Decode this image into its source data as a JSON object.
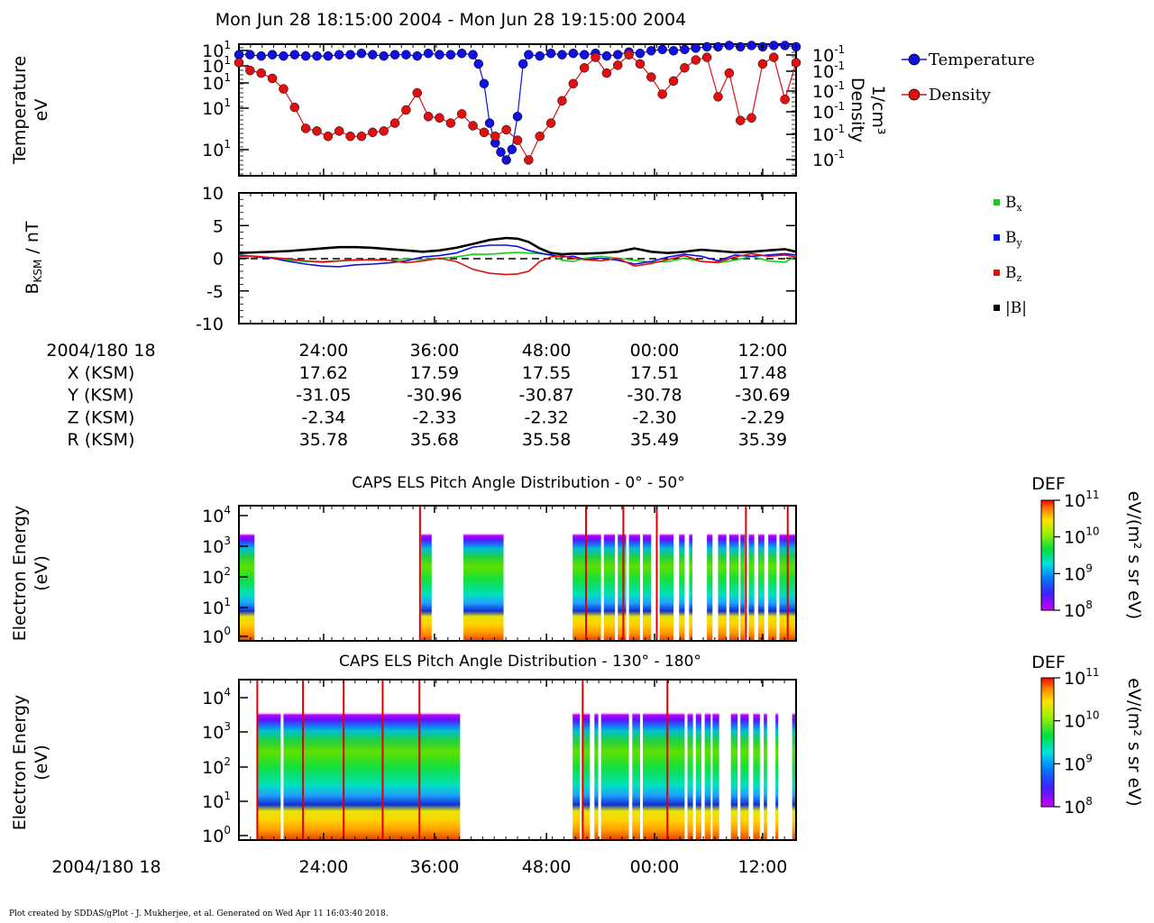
{
  "title": "Mon Jun 28 18:15:00 2004 - Mon Jun 28 19:15:00 2004",
  "footer": "Plot created by SDDAS/gPlot - J. Mukherjee, et al.  Generated on Wed Apr 11 16:03:40 2018.",
  "colors": {
    "temperature": "#1010e0",
    "density": "#e01010",
    "bx": "#10d010",
    "by": "#1010e0",
    "bz": "#e01010",
    "bmag": "#000000"
  },
  "chart_data": [
    {
      "type": "scatter",
      "title": "",
      "xlabel": "",
      "ylabel": "Temperature\neV",
      "ylabel_lines": [
        "Temperature",
        "eV"
      ],
      "y2label_lines": [
        "Density",
        "1/cm³"
      ],
      "legend": [
        {
          "name": "Temperature",
          "color": "#1010e0"
        },
        {
          "name": "Density",
          "color": "#e01010"
        }
      ],
      "legend_placement": "right",
      "y_ticks": [
        "10¹",
        "10¹",
        "10¹",
        "10¹",
        "10¹"
      ],
      "y2_ticks": [
        "10⁻¹",
        "10⁻¹",
        "10⁻¹",
        "10⁻¹",
        "10⁻¹",
        "10⁻¹"
      ],
      "series": [
        {
          "name": "Temperature",
          "x": [
            0,
            2,
            4,
            6,
            8,
            10,
            12,
            14,
            16,
            18,
            20,
            22,
            24,
            26,
            28,
            30,
            32,
            34,
            36,
            38,
            40,
            42,
            43,
            44,
            45,
            46,
            47,
            48,
            49,
            50,
            51,
            52,
            54,
            56,
            58,
            60,
            62,
            64,
            66,
            68,
            70,
            72,
            74,
            76,
            78,
            80,
            82,
            84,
            86,
            88,
            90,
            92,
            94,
            96,
            98,
            100
          ],
          "values": [
            0.92,
            0.92,
            0.91,
            0.92,
            0.91,
            0.92,
            0.91,
            0.91,
            0.91,
            0.92,
            0.92,
            0.93,
            0.92,
            0.91,
            0.92,
            0.92,
            0.91,
            0.93,
            0.92,
            0.92,
            0.93,
            0.92,
            0.85,
            0.7,
            0.4,
            0.25,
            0.18,
            0.12,
            0.2,
            0.45,
            0.85,
            0.92,
            0.91,
            0.93,
            0.92,
            0.93,
            0.92,
            0.93,
            0.91,
            0.92,
            0.94,
            0.93,
            0.95,
            0.96,
            0.95,
            0.96,
            0.97,
            0.98,
            0.98,
            0.99,
            0.98,
            0.99,
            0.98,
            0.99,
            0.99,
            0.98
          ]
        },
        {
          "name": "Density",
          "x": [
            0,
            2,
            4,
            6,
            8,
            10,
            12,
            14,
            16,
            18,
            20,
            22,
            24,
            26,
            28,
            30,
            32,
            34,
            36,
            38,
            40,
            42,
            44,
            46,
            48,
            50,
            52,
            54,
            56,
            58,
            60,
            62,
            64,
            66,
            68,
            70,
            72,
            74,
            76,
            78,
            80,
            82,
            84,
            86,
            88,
            90,
            92,
            94,
            96,
            98,
            100
          ],
          "values": [
            0.86,
            0.8,
            0.78,
            0.74,
            0.66,
            0.52,
            0.36,
            0.34,
            0.3,
            0.34,
            0.3,
            0.3,
            0.33,
            0.34,
            0.4,
            0.5,
            0.63,
            0.45,
            0.44,
            0.4,
            0.47,
            0.38,
            0.33,
            0.3,
            0.35,
            0.27,
            0.12,
            0.3,
            0.4,
            0.57,
            0.7,
            0.82,
            0.9,
            0.78,
            0.84,
            0.92,
            0.85,
            0.75,
            0.62,
            0.72,
            0.82,
            0.88,
            0.9,
            0.6,
            0.78,
            0.42,
            0.44,
            0.85,
            0.9,
            0.58,
            0.86
          ]
        }
      ]
    },
    {
      "type": "line",
      "title": "",
      "xlabel": "",
      "ylabel": "BKSM / nT",
      "ylabel_main": "B",
      "ylabel_sub": "KSM",
      "ylabel_rest": " / nT",
      "ylim": [
        -10,
        10
      ],
      "y_ticks": [
        "10",
        "5",
        "0",
        "-5",
        "-10"
      ],
      "y_tick_values": [
        10,
        5,
        0,
        -5,
        -10
      ],
      "legend": [
        {
          "name": "Bx",
          "base": "B",
          "sub": "x",
          "color": "#10d010"
        },
        {
          "name": "By",
          "base": "B",
          "sub": "y",
          "color": "#1010e0"
        },
        {
          "name": "Bz",
          "base": "B",
          "sub": "z",
          "color": "#e01010"
        },
        {
          "name": "|B|",
          "base": "|B|",
          "sub": "",
          "color": "#000000"
        }
      ],
      "legend_placement": "right",
      "x": [
        0,
        3,
        6,
        9,
        12,
        15,
        18,
        21,
        24,
        27,
        30,
        33,
        36,
        39,
        42,
        45,
        48,
        50,
        52,
        54,
        56,
        58,
        60,
        62,
        65,
        68,
        71,
        74,
        77,
        80,
        83,
        86,
        89,
        92,
        95,
        98,
        100
      ],
      "series": [
        {
          "name": "Bx",
          "values": [
            0.5,
            0.3,
            0,
            -0.3,
            -0.5,
            -0.5,
            -0.4,
            -0.2,
            -0.3,
            -0.3,
            -0.1,
            -0.2,
            0,
            0.2,
            0.6,
            0.6,
            0.8,
            0.9,
            0.8,
            0.7,
            0.5,
            -0.3,
            -0.5,
            0,
            0.3,
            0,
            -0.3,
            -0.6,
            -0.5,
            0,
            -0.5,
            -0.7,
            -0.3,
            0.3,
            -0.4,
            -0.6,
            0.3
          ]
        },
        {
          "name": "By",
          "values": [
            0.5,
            0.2,
            0,
            -0.5,
            -0.9,
            -1.2,
            -1.3,
            -1,
            -0.9,
            -0.7,
            -0.4,
            0.2,
            0.4,
            0.8,
            1.7,
            2.0,
            2.0,
            1.8,
            1.2,
            0.8,
            0.5,
            0.2,
            0.3,
            -0.2,
            0,
            -0.3,
            -0.9,
            -0.5,
            0.2,
            0.6,
            0.3,
            -0.4,
            0.5,
            0.3,
            0.5,
            0.7,
            0.5
          ]
        },
        {
          "name": "Bz",
          "values": [
            0.3,
            0.3,
            0.1,
            -0.1,
            -0.4,
            -0.6,
            -0.4,
            -0.3,
            -0.2,
            -0.3,
            -0.7,
            -0.4,
            0,
            -0.5,
            -1.7,
            -2.3,
            -2.5,
            -2.4,
            -2.0,
            -0.5,
            0.2,
            0.4,
            0,
            -0.2,
            -0.4,
            0,
            -1.2,
            -0.8,
            -0.2,
            0.4,
            -0.5,
            -0.6,
            0.2,
            0.7,
            0.3,
            0.5,
            0.2
          ]
        },
        {
          "name": "|B|",
          "values": [
            0.8,
            0.9,
            1.0,
            1.1,
            1.3,
            1.5,
            1.7,
            1.7,
            1.6,
            1.4,
            1.2,
            1.0,
            1.2,
            1.6,
            2.2,
            2.8,
            3.1,
            3.0,
            2.5,
            1.5,
            0.8,
            0.6,
            0.7,
            0.7,
            0.8,
            1.0,
            1.5,
            1.0,
            0.8,
            1.0,
            1.3,
            1.1,
            0.9,
            1.0,
            1.2,
            1.4,
            1.0
          ]
        }
      ]
    },
    {
      "type": "heatmap",
      "title": "CAPS ELS Pitch Angle Distribution - 0° - 50°",
      "xlabel": "",
      "ylabel_lines": [
        "Electron Energy",
        "(eV)"
      ],
      "y_ticks": [
        {
          "base": "10",
          "exp": "4"
        },
        {
          "base": "10",
          "exp": "3"
        },
        {
          "base": "10",
          "exp": "2"
        },
        {
          "base": "10",
          "exp": "1"
        },
        {
          "base": "10",
          "exp": "0"
        }
      ],
      "colorbar": {
        "label": "DEF",
        "units": "eV/(m² s sr eV)",
        "ticks": [
          {
            "base": "10",
            "exp": "11"
          },
          {
            "base": "10",
            "exp": "10"
          },
          {
            "base": "10",
            "exp": "9"
          },
          {
            "base": "10",
            "exp": "8"
          }
        ]
      },
      "data_segments": [
        [
          0,
          2.8
        ],
        [
          32.7,
          34.6
        ],
        [
          40.3,
          47.5
        ],
        [
          59.9,
          65
        ],
        [
          65.5,
          67.5
        ],
        [
          68,
          69.5
        ],
        [
          70,
          72
        ],
        [
          72.5,
          74
        ],
        [
          75.5,
          78
        ],
        [
          79,
          80
        ],
        [
          80.8,
          81.4
        ],
        [
          84,
          85
        ],
        [
          86,
          87.5
        ],
        [
          88,
          89.7
        ],
        [
          90,
          90.8
        ],
        [
          91.5,
          92.5
        ],
        [
          93.2,
          94.3
        ],
        [
          95,
          96.5
        ],
        [
          97,
          100
        ]
      ],
      "spikes": [
        32.5,
        62.3,
        69,
        75,
        91,
        98.5
      ]
    },
    {
      "type": "heatmap",
      "title": "CAPS ELS Pitch Angle Distribution - 130° - 180°",
      "xlabel": "",
      "ylabel_lines": [
        "Electron Energy",
        "(eV)"
      ],
      "y_ticks": [
        {
          "base": "10",
          "exp": "4"
        },
        {
          "base": "10",
          "exp": "3"
        },
        {
          "base": "10",
          "exp": "2"
        },
        {
          "base": "10",
          "exp": "1"
        },
        {
          "base": "10",
          "exp": "0"
        }
      ],
      "colorbar": {
        "label": "DEF",
        "units": "eV/(m² s sr eV)",
        "ticks": [
          {
            "base": "10",
            "exp": "11"
          },
          {
            "base": "10",
            "exp": "10"
          },
          {
            "base": "10",
            "exp": "9"
          },
          {
            "base": "10",
            "exp": "8"
          }
        ]
      },
      "data_segments": [
        [
          3.2,
          7.5
        ],
        [
          8,
          39.7
        ],
        [
          59.9,
          61.2
        ],
        [
          61.8,
          63
        ],
        [
          63.8,
          64.5
        ],
        [
          65,
          70
        ],
        [
          70.6,
          72
        ],
        [
          72.5,
          80
        ],
        [
          80.5,
          81.5
        ],
        [
          82,
          83
        ],
        [
          83.6,
          84.7
        ],
        [
          85,
          86.2
        ],
        [
          88.3,
          89.5
        ],
        [
          90,
          91.5
        ],
        [
          92.3,
          93.5
        ],
        [
          94.2,
          94.8
        ],
        [
          96.3,
          96.8
        ],
        [
          99.3,
          100
        ]
      ],
      "spikes": [
        3.3,
        11.5,
        18.8,
        25.8,
        32.4,
        61.7,
        76.9
      ]
    }
  ],
  "x_axis": {
    "start_label": "2004/180 18",
    "tick_labels": [
      "24:00",
      "36:00",
      "48:00",
      "00:00",
      "12:00"
    ],
    "tick_positions": [
      15.2,
      35.1,
      55.2,
      74.6,
      94.0
    ]
  },
  "ephemeris": {
    "rows": [
      {
        "label": "X (KSM)",
        "values": [
          "17.62",
          "17.59",
          "17.55",
          "17.51",
          "17.48"
        ]
      },
      {
        "label": "Y (KSM)",
        "values": [
          "-31.05",
          "-30.96",
          "-30.87",
          "-30.78",
          "-30.69"
        ]
      },
      {
        "label": "Z (KSM)",
        "values": [
          "-2.34",
          "-2.33",
          "-2.32",
          "-2.30",
          "-2.29"
        ]
      },
      {
        "label": "R (KSM)",
        "values": [
          "35.78",
          "35.68",
          "35.58",
          "35.49",
          "35.39"
        ]
      }
    ]
  }
}
